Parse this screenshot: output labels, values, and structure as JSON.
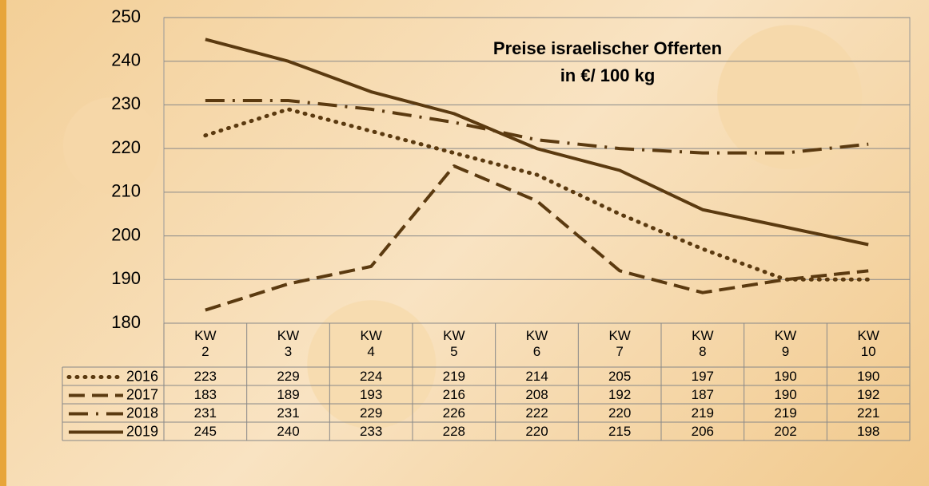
{
  "chart_data": {
    "type": "line",
    "title": "Preise israelischer Offerten",
    "subtitle": "in €/ 100 kg",
    "categories": [
      "KW 2",
      "KW 3",
      "KW 4",
      "KW 5",
      "KW 6",
      "KW 7",
      "KW 8",
      "KW 9",
      "KW 10"
    ],
    "series": [
      {
        "name": "2016",
        "color": "#5b3a10",
        "line_style": "dotted",
        "values": [
          223,
          229,
          224,
          219,
          214,
          205,
          197,
          190,
          190
        ]
      },
      {
        "name": "2017",
        "color": "#5b3a10",
        "line_style": "dashed",
        "values": [
          183,
          189,
          193,
          216,
          208,
          192,
          187,
          190,
          192
        ]
      },
      {
        "name": "2018",
        "color": "#5b3a10",
        "line_style": "dash-dot",
        "values": [
          231,
          231,
          229,
          226,
          222,
          220,
          219,
          219,
          221
        ]
      },
      {
        "name": "2019",
        "color": "#5b3a10",
        "line_style": "solid",
        "values": [
          245,
          240,
          233,
          228,
          220,
          215,
          206,
          202,
          198
        ]
      }
    ],
    "ylim": [
      180,
      250
    ],
    "yticks": [
      180,
      190,
      200,
      210,
      220,
      230,
      240,
      250
    ],
    "grid": true
  }
}
